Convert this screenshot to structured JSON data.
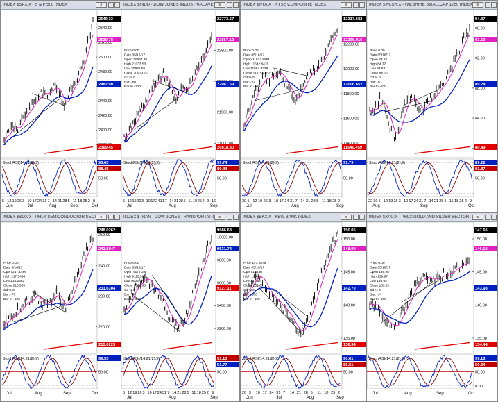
{
  "charts": [
    {
      "title": "INDEX $SPX.X - S & P 500 INDEX",
      "price_labels": [
        {
          "v": "2549.33",
          "c": "#000"
        },
        {
          "v": "2530.78",
          "c": "#e020c0"
        },
        {
          "v": "2482.90",
          "c": "#0020c0"
        },
        {
          "v": "2369.45",
          "c": "#e00000"
        }
      ],
      "axis": [
        "2540.00",
        "2520.00",
        "2500.00",
        "2480.00",
        "2460.00",
        "2440.00",
        "2420.00",
        "2400.00",
        "2380.00"
      ],
      "axis_range": [
        2365,
        2560
      ],
      "info": [],
      "rsi_label": "StochRSI(14,21(2),9)",
      "rsi_values": [
        {
          "v": "93.63",
          "c": "#0020c0"
        },
        {
          "v": "88.45",
          "c": "#c00000"
        }
      ],
      "rsi_axis": [
        "50.00"
      ],
      "dates": [
        "5",
        "12",
        "19",
        "26",
        "3",
        "10",
        "17",
        "24",
        "31",
        "7",
        "14",
        "21",
        "28",
        "5",
        "11",
        "18",
        "25",
        "2",
        "9"
      ],
      "months": [
        "Jun",
        "Jul",
        "Aug",
        "Sep",
        "Oct"
      ],
      "trend": [
        0.1,
        0.14,
        0.2,
        0.18,
        0.26,
        0.3,
        0.35,
        0.4,
        0.46,
        0.42,
        0.48,
        0.52,
        0.44,
        0.36,
        0.46,
        0.5,
        0.6,
        0.7,
        0.85,
        0.98
      ]
    },
    {
      "title": "INDEX $INDU - DOW JONES INDUSTRIAL AVERAGE",
      "price_labels": [
        {
          "v": "22773.67",
          "c": "#000"
        },
        {
          "v": "22567.12",
          "c": "#e020c0"
        },
        {
          "v": "22061.59",
          "c": "#0020c0"
        },
        {
          "v": "20818.30",
          "c": "#e00000"
        }
      ],
      "axis": [
        "23000.00",
        "22500.00",
        "22000.00",
        "21500.00",
        "21000.00"
      ],
      "axis_range": [
        20800,
        23100
      ],
      "info": [
        "Price 0.00",
        "Date 05/16/17",
        "Open 20964.46",
        "High 21033.53",
        "Low 20932.66",
        "Close 20979.75",
        "Cd % 0",
        "Bar: -60",
        "Bar In -100"
      ],
      "rsi_label": "StochRSI(14,21(2),9)",
      "rsi_values": [
        {
          "v": "99.74",
          "c": "#0020c0"
        },
        {
          "v": "89.44",
          "c": "#c00000"
        }
      ],
      "rsi_axis": [
        "50.00"
      ],
      "dates": [
        "5",
        "12",
        "19",
        "26",
        "3",
        "10",
        "17",
        "24",
        "31",
        "7",
        "14",
        "21",
        "28",
        "5",
        "11",
        "18",
        "25",
        "2",
        "9",
        "16"
      ],
      "months": [
        "Jul",
        "Aug",
        "Sep"
      ],
      "trend": [
        0.1,
        0.16,
        0.22,
        0.3,
        0.36,
        0.42,
        0.5,
        0.56,
        0.6,
        0.52,
        0.44,
        0.4,
        0.5,
        0.46,
        0.56,
        0.64,
        0.7,
        0.8,
        0.9
      ]
    },
    {
      "title": "INDEX $NYA.X - NYSE COMPOSITE INDEX",
      "price_labels": [
        {
          "v": "12317.682",
          "c": "#000"
        },
        {
          "v": "12266.916",
          "c": "#e020c0"
        },
        {
          "v": "12006.652",
          "c": "#0020c0"
        },
        {
          "v": "11540.459",
          "c": "#e00000"
        }
      ],
      "axis": [
        "12400.00",
        "12200.00",
        "12000.00",
        "11800.00",
        "11600.00",
        "11400.00"
      ],
      "axis_range": [
        11300,
        12450
      ],
      "info": [
        "Price 0.00",
        "Date 05/16/17",
        "Open 11634.8891",
        "High 11642.8476",
        "Low 11594.8239",
        "Close 11615.4662",
        "Cd % 0",
        "Bar: -87",
        "Bar In -100"
      ],
      "rsi_label": "StochRSI(14,21(2),9)",
      "rsi_values": [
        {
          "v": "91.79",
          "c": "#0020c0"
        }
      ],
      "rsi_axis": [
        "50.00"
      ],
      "dates": [
        "30",
        "5",
        "12",
        "19",
        "26",
        "3",
        "10",
        "17",
        "24",
        "31",
        "7",
        "14",
        "21",
        "28",
        "5",
        "11",
        "18",
        "25",
        "2"
      ],
      "months": [
        "Jul",
        "Aug",
        "Sep"
      ],
      "trend": [
        0.2,
        0.3,
        0.42,
        0.52,
        0.58,
        0.55,
        0.62,
        0.6,
        0.52,
        0.45,
        0.4,
        0.48,
        0.55,
        0.62,
        0.66,
        0.72,
        0.8,
        0.88,
        0.92
      ]
    },
    {
      "title": "INDEX $WLSH.X - WILSHIRE SMALLCAP 1750 INDEX",
      "price_labels": [
        {
          "v": "94.87",
          "c": "#000"
        },
        {
          "v": "93.69",
          "c": "#e020c0"
        },
        {
          "v": "89.24",
          "c": "#0020c0"
        },
        {
          "v": "80.49",
          "c": "#e00000"
        }
      ],
      "axis": [
        "96.00",
        "92.00",
        "88.00",
        "84.00",
        "80.00"
      ],
      "axis_range": [
        79,
        98
      ],
      "info": [
        "Price 0.00",
        "Date 05/16/17",
        "Open 83.92",
        "High 84.77",
        "Low 83.63",
        "Close 84.50",
        "Cd % 0",
        "Bar: -83",
        "Bar In -100"
      ],
      "rsi_label": "StochRSI(14,21(2),9)",
      "rsi_values": [
        {
          "v": "89.22",
          "c": "#0020c0"
        },
        {
          "v": "91.87",
          "c": "#c00000"
        }
      ],
      "rsi_axis": [
        "50.00"
      ],
      "dates": [
        "22",
        "30",
        "5",
        "12",
        "19",
        "26",
        "3",
        "10",
        "17",
        "24",
        "31",
        "7",
        "14",
        "21",
        "28",
        "5",
        "11",
        "18",
        "25",
        "2",
        "9"
      ],
      "months": [
        "Aug",
        "Sep",
        "Oct"
      ],
      "trend": [
        0.3,
        0.34,
        0.4,
        0.35,
        0.2,
        0.1,
        0.22,
        0.36,
        0.42,
        0.38,
        0.3,
        0.34,
        0.4,
        0.44,
        0.48,
        0.56,
        0.62,
        0.7,
        0.78,
        0.88,
        0.92
      ]
    },
    {
      "title": "INDEX $SOX.X - PHLX SEMICONDUCTOR SECTOR",
      "price_labels": [
        {
          "v": "248.0262",
          "c": "#000"
        },
        {
          "v": "243.8847",
          "c": "#e020c0"
        },
        {
          "v": "231.6304",
          "c": "#0020c0"
        },
        {
          "v": "215.6223",
          "c": "#e00000"
        }
      ],
      "axis": [
        "250.00",
        "240.00",
        "230.00",
        "220.00"
      ],
      "axis_range": [
        212,
        253
      ],
      "info": [
        "Price 0.00",
        "Date 5/16/17",
        "Open 217.1496",
        "High 217.1496",
        "Low 215.2682",
        "Close 216.565",
        "Cd % 0",
        "Bar: -76",
        "Bar In -100"
      ],
      "rsi_label": "StochRSI(14,21(2),9)",
      "rsi_values": [
        {
          "v": "99.33",
          "c": "#0020c0"
        }
      ],
      "rsi_axis": [
        "50.00"
      ],
      "dates": [],
      "months": [
        "Jul",
        "Aug",
        "Sep",
        "Oct"
      ],
      "trend": [
        0.2,
        0.25,
        0.3,
        0.35,
        0.38,
        0.42,
        0.46,
        0.4,
        0.36,
        0.42,
        0.48,
        0.4,
        0.36,
        0.5,
        0.62,
        0.76,
        0.88,
        0.96
      ]
    },
    {
      "title": "INDEX $TRAN - DOW JONES TRANSPORTATION AVERAGE",
      "price_labels": [
        {
          "v": "9886.68",
          "c": "#000"
        },
        {
          "v": "9531.74",
          "c": "#0020c0"
        },
        {
          "v": "9127.11",
          "c": "#e00000"
        }
      ],
      "axis": [
        "10000.00",
        "9800.00",
        "9600.00",
        "9400.00",
        "9200.00"
      ],
      "axis_range": [
        9000,
        10100
      ],
      "info": [
        "Price 0.00",
        "Date 05/16/17",
        "Open 9077.22",
        "High 9115.92",
        "Low 9008.77",
        "Close 9062.85",
        "Cd % 0",
        "Bar: -60",
        "Bar In -100"
      ],
      "rsi_label": "StochRSI(14,21(2),9)",
      "rsi_values": [
        {
          "v": "51.13",
          "c": "#c00000"
        },
        {
          "v": "51.77",
          "c": "#0020c0"
        }
      ],
      "rsi_axis": [
        "50.00"
      ],
      "dates": [
        "5",
        "12",
        "19",
        "26",
        "3",
        "10",
        "17",
        "24",
        "31",
        "7",
        "14",
        "21",
        "28",
        "5",
        "11",
        "18",
        "25",
        "2",
        "9"
      ],
      "months": [
        "Jul",
        "Aug",
        "Sep"
      ],
      "trend": [
        0.3,
        0.4,
        0.5,
        0.56,
        0.62,
        0.58,
        0.52,
        0.46,
        0.4,
        0.3,
        0.22,
        0.18,
        0.22,
        0.3,
        0.45,
        0.6,
        0.72,
        0.86,
        0.95
      ]
    },
    {
      "title": "INDEX $BKX.X - KBW BANK INDEX",
      "price_labels": [
        {
          "v": "150.05",
          "c": "#000"
        },
        {
          "v": "148.90",
          "c": "#e020c0"
        },
        {
          "v": "142.70",
          "c": "#0020c0"
        },
        {
          "v": "136.34",
          "c": "#e00000"
        }
      ],
      "axis": [
        "150.00",
        "145.00",
        "140.00",
        "135.00"
      ],
      "axis_range": [
        133,
        152
      ],
      "info": [
        "Price 147.2876",
        "Date 05/16/17",
        "Open 138.97",
        "High 139.04",
        "Low 137.62",
        "Close 138.63",
        "Cd % 0",
        "Bar: -100",
        "Bar In -100"
      ],
      "rsi_label": "StochRSI(14,21(2),9)",
      "rsi_values": [
        {
          "v": "90.61",
          "c": "#0020c0"
        },
        {
          "v": "85.51",
          "c": "#c00000"
        }
      ],
      "rsi_axis": [
        "50.00"
      ],
      "dates": [
        "26",
        "3",
        "10",
        "17",
        "24",
        "31",
        "7",
        "14",
        "21",
        "28",
        "5",
        "11",
        "18",
        "25",
        "2"
      ],
      "months": [
        "Jun",
        "Jul",
        "Aug",
        "Sep"
      ],
      "trend": [
        0.45,
        0.55,
        0.62,
        0.58,
        0.5,
        0.42,
        0.36,
        0.3,
        0.2,
        0.12,
        0.22,
        0.4,
        0.58,
        0.74,
        0.9,
        0.98
      ]
    },
    {
      "title": "INDEX $XAU.X - PHLX GOLD AND SILVER SECTOR",
      "price_labels": [
        {
          "v": "147.66",
          "c": "#000"
        },
        {
          "v": "146.18",
          "c": "#e020c0"
        },
        {
          "v": "143.98",
          "c": "#0020c0"
        },
        {
          "v": "134.44",
          "c": "#e00000"
        }
      ],
      "axis": [
        "150.00",
        "145.00",
        "140.00",
        "135.00"
      ],
      "axis_range": [
        133,
        152
      ],
      "info": [
        "Price 0.00",
        "Date 05/16/17",
        "Open 139.95",
        "High 139.97",
        "Low 138.64",
        "Close 139.62",
        "Cd % 0",
        "Bar: -14",
        "Bar In -100"
      ],
      "rsi_label": "StochRSI(14,21(2),9)",
      "rsi_values": [
        {
          "v": "99.13",
          "c": "#0020c0"
        },
        {
          "v": "59.34",
          "c": "#c00000"
        }
      ],
      "rsi_axis": [
        "100.00",
        "50.00",
        "0.00"
      ],
      "dates": [],
      "months": [
        "Jul",
        "Aug",
        "Sep",
        "Oct"
      ],
      "trend": [
        0.4,
        0.36,
        0.3,
        0.22,
        0.16,
        0.24,
        0.36,
        0.48,
        0.56,
        0.62,
        0.6,
        0.58,
        0.62,
        0.66,
        0.64,
        0.7,
        0.74,
        0.78
      ]
    }
  ],
  "chart_data": [
    {
      "type": "line",
      "title": "INDEX $SPX.X - S & P 500 INDEX",
      "ylim": [
        2365,
        2560
      ],
      "last_values": {
        "price": 2549.33,
        "ma_short": 2530.78,
        "ma_mid": 2482.9,
        "ma_long": 2369.45
      },
      "stochrsi": [
        93.63,
        88.45
      ]
    },
    {
      "type": "line",
      "title": "INDEX $INDU - DOW JONES INDUSTRIAL AVERAGE",
      "ylim": [
        20800,
        23100
      ],
      "last_values": {
        "price": 22773.67,
        "ma_short": 22567.12,
        "ma_mid": 22061.59,
        "ma_long": 20818.3
      },
      "stochrsi": [
        99.74,
        89.44
      ]
    },
    {
      "type": "line",
      "title": "INDEX $NYA.X - NYSE COMPOSITE INDEX",
      "ylim": [
        11300,
        12450
      ],
      "last_values": {
        "price": 12317.682,
        "ma_short": 12266.916,
        "ma_mid": 12006.652,
        "ma_long": 11540.459
      },
      "stochrsi": [
        91.79
      ]
    },
    {
      "type": "line",
      "title": "INDEX $WLSH.X - WILSHIRE SMALLCAP 1750 INDEX",
      "ylim": [
        79,
        98
      ],
      "last_values": {
        "price": 94.87,
        "ma_short": 93.69,
        "ma_mid": 89.24,
        "ma_long": 80.49
      },
      "stochrsi": [
        89.22,
        91.87
      ]
    },
    {
      "type": "line",
      "title": "INDEX $SOX.X - PHLX SEMICONDUCTOR SECTOR",
      "ylim": [
        212,
        253
      ],
      "last_values": {
        "price": 248.0262,
        "ma_short": 243.8847,
        "ma_mid": 231.6304,
        "ma_long": 215.6223
      },
      "stochrsi": [
        99.33
      ]
    },
    {
      "type": "line",
      "title": "INDEX $TRAN - DOW JONES TRANSPORTATION AVERAGE",
      "ylim": [
        9000,
        10100
      ],
      "last_values": {
        "price": 9886.68,
        "ma_mid": 9531.74,
        "ma_long": 9127.11
      },
      "stochrsi": [
        51.13,
        51.77
      ]
    },
    {
      "type": "line",
      "title": "INDEX $BKX.X - KBW BANK INDEX",
      "ylim": [
        133,
        152
      ],
      "last_values": {
        "price": 150.05,
        "ma_short": 148.9,
        "ma_mid": 142.7,
        "ma_long": 136.34
      },
      "stochrsi": [
        90.61,
        85.51
      ]
    },
    {
      "type": "line",
      "title": "INDEX $XAU.X - PHLX GOLD AND SILVER SECTOR",
      "ylim": [
        133,
        152
      ],
      "last_values": {
        "price": 147.66,
        "ma_short": 146.18,
        "ma_mid": 143.98,
        "ma_long": 134.44
      },
      "stochrsi": [
        99.13,
        59.34
      ]
    }
  ],
  "colors": {
    "price": "#000000",
    "ma_short": "#e020c0",
    "ma_mid": "#0020c0",
    "ma_long": "#e00000",
    "rsi_fast": "#0020c0",
    "rsi_slow": "#8b0000",
    "titlebar": "#d8dde8"
  },
  "icons": [
    "close-icon",
    "toolbar-icon",
    "menu-icon"
  ]
}
